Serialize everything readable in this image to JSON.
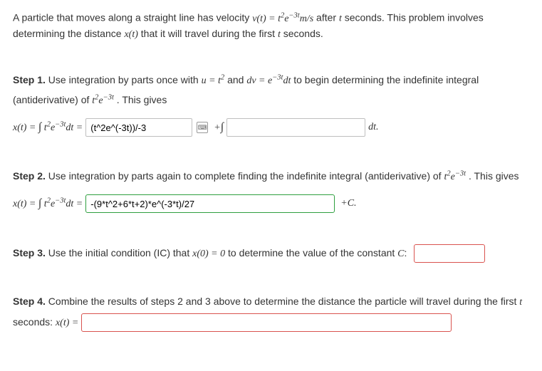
{
  "intro": {
    "prefix": "A particle that moves along a straight line has velocity ",
    "velocity_expr_html": "v(t) = t<sup>2</sup>e<sup>&minus;3t</sup>m/s",
    "middle": " after ",
    "t_var": "t",
    "after_t": " seconds. This problem involves determining the distance ",
    "x_expr": "x(t)",
    "suffix": " that it will travel during the first ",
    "t2": "t",
    "tail": " seconds."
  },
  "step1": {
    "label": "Step 1.",
    "text_a": " Use integration by parts once with ",
    "u_expr_html": "u = t<sup>2</sup>",
    "and": " and ",
    "dv_expr_html": "dv = e<sup>&minus;3t</sup>dt",
    "text_b": " to begin determining the indefinite integral (antiderivative) of ",
    "integrand_html": "t<sup>2</sup>e<sup>&minus;3t</sup>",
    "text_c": ". This gives",
    "lhs_html": "x(t) = <span class=\"int\">&int;</span> t<sup>2</sup>e<sup>&minus;3t</sup>dt = ",
    "input1_value": "(t^2e^(-3t))/-3",
    "plus_int": "+<span class=\"int\">&int;</span>",
    "input2_value": "",
    "dt": " dt."
  },
  "step2": {
    "label": "Step 2.",
    "text_a": " Use integration by parts again to complete finding the indefinite integral (antiderivative) of ",
    "integrand_html": "t<sup>2</sup>e<sup>&minus;3t</sup>",
    "text_b": ". This gives",
    "lhs_html": "x(t) = <span class=\"int\">&int;</span> t<sup>2</sup>e<sup>&minus;3t</sup>dt = ",
    "input_value": "-(9*t^2+6*t+2)*e^(-3*t)/27",
    "plus_c_html": "+C."
  },
  "step3": {
    "label": "Step 3.",
    "text_a": " Use the initial condition (IC) that ",
    "ic_expr_html": "x(0) = 0",
    "text_b": " to determine the value of the constant ",
    "C": "C",
    "colon": ":",
    "input_value": ""
  },
  "step4": {
    "label": "Step 4.",
    "text_a": " Combine the results of steps 2 and 3 above to determine the distance the particle will travel during the first ",
    "t": "t",
    "text_b": " seconds: ",
    "lhs": "x(t) = ",
    "input_value": ""
  },
  "style": {
    "input_gray_border": "#bfbfbf",
    "input_green_border": "#2e9f3f",
    "input_red_border": "#d9534f",
    "text_color": "#333333",
    "background": "#ffffff",
    "font_size_pt": 10.5
  }
}
